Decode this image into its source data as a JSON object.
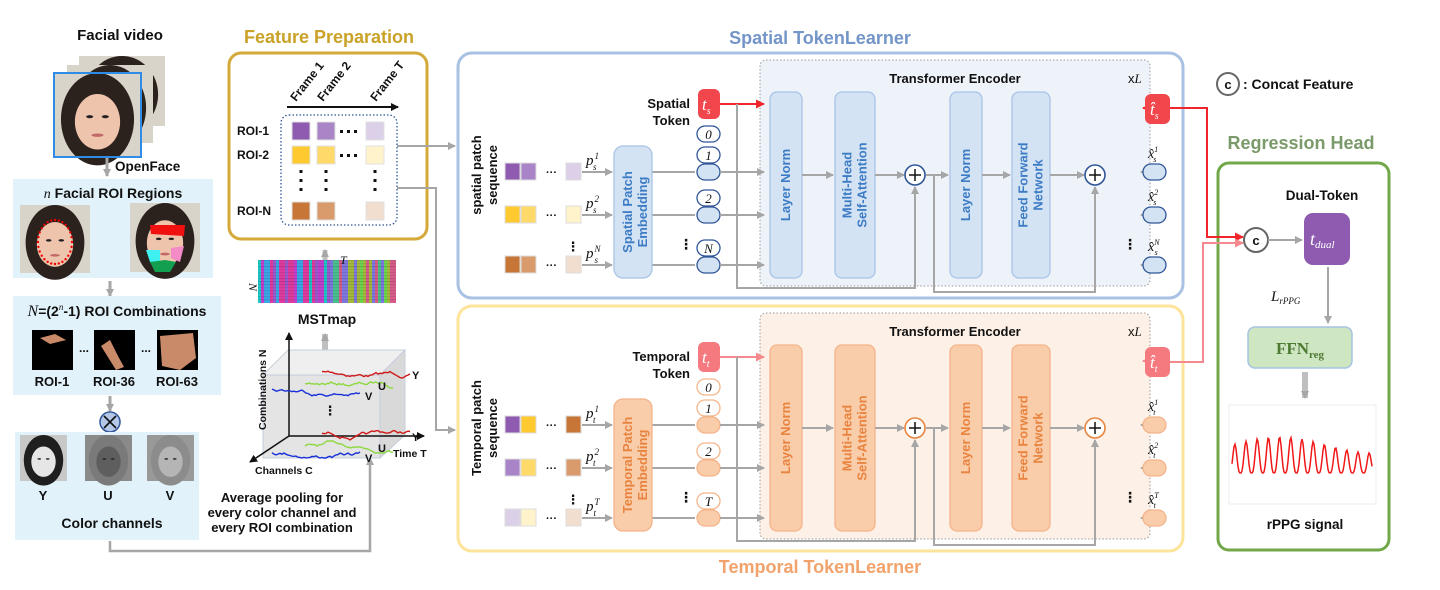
{
  "input": {
    "facial_video_title": "Facial video",
    "openface_label": "OpenFace",
    "roi_regions_var": "n",
    "roi_regions_title": " Facial ROI Regions",
    "combinations_var": "N",
    "combinations_pre": "=(2",
    "combinations_sup": "n",
    "combinations_post": "-1) ROI Combinations",
    "combination_labels": [
      "ROI-1",
      "ROI-36",
      "ROI-63"
    ],
    "ellipsis": "...",
    "multiply_symbol": "⊗",
    "channel_labels": [
      "Y",
      "U",
      "V"
    ],
    "color_channels_title": "Color channels"
  },
  "pooling_note": [
    "Average pooling for",
    "every color channel and",
    "every ROI combination"
  ],
  "feature_prep": {
    "title": "Feature Preparation",
    "frames": [
      "Frame 1",
      "Frame 2",
      "Frame T"
    ],
    "rois": [
      "ROI-1",
      "ROI-2",
      "ROI-N"
    ],
    "mstmap_label": "MSTmap",
    "mstmap_axis_t": "T",
    "mstmap_axis_n": "N",
    "cube": {
      "axis_combinations": "Combinations N",
      "axis_channels": "Channels C",
      "axis_time": "Time T",
      "channel_labels": [
        "Y",
        "U",
        "V"
      ]
    }
  },
  "spatial": {
    "title": "Spatial TokenLearner",
    "sequence_label": [
      "spatial patch",
      "sequence"
    ],
    "embedding_label": [
      "Spatial Patch",
      "Embedding"
    ],
    "token_label": [
      "Spatial",
      "Token"
    ],
    "token": "t",
    "token_sub": "s",
    "patch_var": "p",
    "patch_sub": "s",
    "patch_sups": [
      "1",
      "2",
      "N"
    ],
    "position_ids": [
      "0",
      "1",
      "2",
      "N"
    ],
    "encoder_title": "Transformer Encoder",
    "repeat_x": "x",
    "repeat_l": "L",
    "blocks": [
      [
        "Layer Norm"
      ],
      [
        "Multi-Head",
        "Self-Attention"
      ],
      [
        "Layer Norm"
      ],
      [
        "Feed Forward",
        "Network"
      ]
    ],
    "output_var": "x̂",
    "output_sups": [
      "1",
      "2",
      "N"
    ],
    "output_token": "t̂"
  },
  "temporal": {
    "title": "Temporal TokenLearner",
    "sequence_label": [
      "Temporal patch",
      "sequence"
    ],
    "embedding_label": [
      "Temporal Patch",
      "Embedding"
    ],
    "token_label": [
      "Temporal",
      "Token"
    ],
    "token": "t",
    "token_sub": "t",
    "patch_var": "p",
    "patch_sub": "t",
    "patch_sups": [
      "1",
      "2",
      "T"
    ],
    "position_ids": [
      "0",
      "1",
      "2",
      "T"
    ],
    "encoder_title": "Transformer Encoder",
    "repeat_x": "x",
    "repeat_l": "L",
    "blocks": [
      [
        "Layer Norm"
      ],
      [
        "Multi-Head",
        "Self-Attention"
      ],
      [
        "Layer Norm"
      ],
      [
        "Feed Forward",
        "Network"
      ]
    ],
    "output_var": "x̂",
    "output_sups": [
      "1",
      "2",
      "T"
    ],
    "output_token": "t̂"
  },
  "legend": {
    "symbol": "c",
    "label": ": Concat Feature"
  },
  "regression": {
    "title": "Regression Head",
    "dual_token_label": "Dual-Token",
    "concat_symbol": "c",
    "token": "t",
    "token_sub": "dual",
    "loss": "L",
    "loss_sub": "rPPG",
    "ffn": "FFN",
    "ffn_sub": "reg",
    "signal_label": "rPPG signal"
  },
  "colors": {
    "feature_prep": "#C9A227",
    "spatial": "#7395C8",
    "spatial_block": "#D4E3F4",
    "temporal": "#F2A36B",
    "temporal_block": "#F9CCAA",
    "token_spatial": "#F0464C",
    "token_temporal": "#F47A7F",
    "regression": "#72A84A",
    "dual_token": "#8E5BB0",
    "input_panel": "#E1F2FA"
  }
}
